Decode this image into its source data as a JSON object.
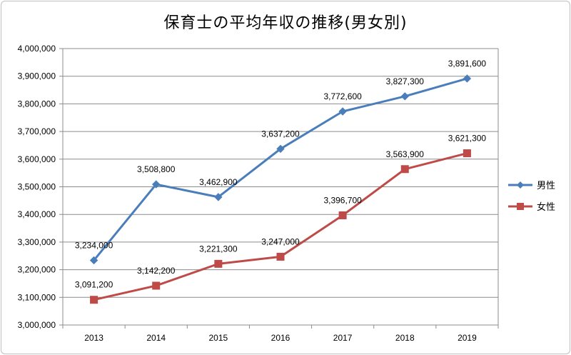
{
  "chart_data": {
    "type": "line",
    "title": "保育士の平均年収の推移(男女別)",
    "categories": [
      "2013",
      "2014",
      "2015",
      "2016",
      "2017",
      "2018",
      "2019"
    ],
    "series": [
      {
        "name": "男性",
        "color": "#4a7ebb",
        "marker": "diamond",
        "values": [
          3234000,
          3508800,
          3462900,
          3637200,
          3772600,
          3827300,
          3891600
        ],
        "labels": [
          "3,234,000",
          "3,508,800",
          "3,462,900",
          "3,637,200",
          "3,772,600",
          "3,827,300",
          "3,891,600"
        ]
      },
      {
        "name": "女性",
        "color": "#be4b48",
        "marker": "square",
        "values": [
          3091200,
          3142200,
          3221300,
          3247000,
          3396700,
          3563900,
          3621300
        ],
        "labels": [
          "3,091,200",
          "3,142,200",
          "3,221,300",
          "3,247,000",
          "3,396,700",
          "3,563,900",
          "3,621,300"
        ]
      }
    ],
    "ylim": [
      3000000,
      4000000
    ],
    "ytick_labels": [
      "3,000,000",
      "3,100,000",
      "3,200,000",
      "3,300,000",
      "3,400,000",
      "3,500,000",
      "3,600,000",
      "3,700,000",
      "3,800,000",
      "3,900,000",
      "4,000,000"
    ],
    "grid": true,
    "legend_position": "right"
  }
}
